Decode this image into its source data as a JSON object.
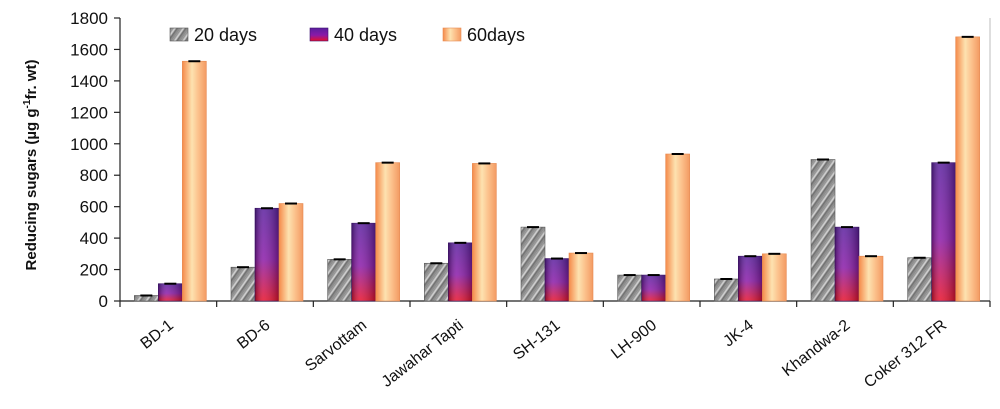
{
  "chart_data": {
    "type": "bar",
    "ylabel": "Reducing sugars (µg g-1fr. wt)",
    "ylabel_parts": {
      "main": "Reducing sugars  (µg g",
      "sup": "-1",
      "tail": "fr. wt)"
    },
    "ylim": [
      0,
      1800
    ],
    "yticks": [
      "0",
      "200",
      "400",
      "600",
      "800",
      "1000",
      "1200",
      "1400",
      "1600",
      "1800"
    ],
    "categories": [
      "BD-1",
      "BD-6",
      "Sarvottam",
      "Jawahar Tapti",
      "SH-131",
      "LH-900",
      "JK-4",
      "Khandwa-2",
      "Coker 312 FR"
    ],
    "series": [
      {
        "name": "20 days",
        "values": [
          35,
          215,
          265,
          240,
          470,
          165,
          140,
          900,
          275
        ],
        "color": "#8c8c8c"
      },
      {
        "name": "40 days",
        "values": [
          110,
          590,
          495,
          370,
          270,
          165,
          285,
          470,
          880
        ],
        "color": "#6a1fa0"
      },
      {
        "name": "60days",
        "values": [
          1525,
          620,
          880,
          875,
          305,
          935,
          300,
          285,
          1680
        ],
        "color": "#f6a878"
      }
    ],
    "legend_position": "top-left",
    "grid": false
  }
}
